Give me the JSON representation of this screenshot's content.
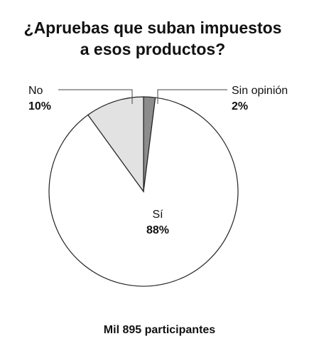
{
  "chart_data": {
    "type": "pie",
    "title": "¿Apruebas que suban impuestos a esos productos?",
    "categories": [
      "Sin opinión",
      "Sí",
      "No"
    ],
    "values": [
      2,
      88,
      10
    ],
    "value_labels": [
      "2%",
      "88%",
      "10%"
    ],
    "colors": [
      "#8c8c8c",
      "#ffffff",
      "#e2e2e2"
    ],
    "footer": "Mil 895 participantes"
  }
}
